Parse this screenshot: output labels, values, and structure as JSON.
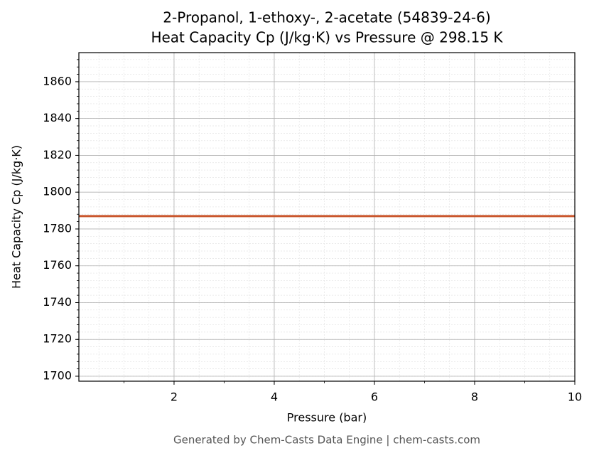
{
  "chart_data": {
    "type": "line",
    "title": "2-Propanol, 1-ethoxy-, 2-acetate (54839-24-6)",
    "subtitle": "Heat Capacity Cp (J/kg·K) vs Pressure @ 298.15 K",
    "x_label": "Pressure (bar)",
    "y_label": "Heat Capacity Cp (J/kg·K)",
    "footer": "Generated by Chem-Casts Data Engine | chem-casts.com",
    "x": [
      0.1,
      10
    ],
    "series": [
      {
        "name": "Cp",
        "color": "#c9562c",
        "values": [
          1787,
          1787
        ]
      }
    ],
    "xlim": [
      0.1,
      10
    ],
    "xticks": [
      2,
      4,
      6,
      8,
      10
    ],
    "ylim": [
      1697.3,
      1875.8
    ],
    "yticks": [
      1700,
      1720,
      1740,
      1760,
      1780,
      1800,
      1820,
      1840,
      1860
    ],
    "grid": true,
    "minor_grid": true
  }
}
